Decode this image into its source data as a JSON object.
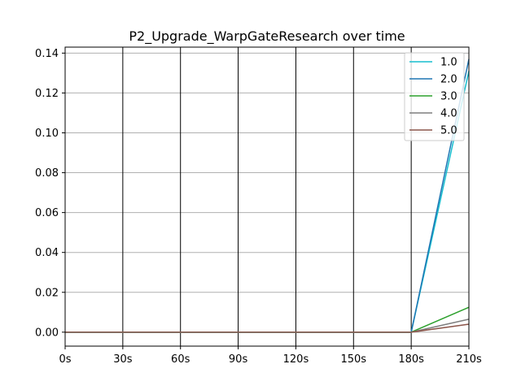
{
  "chart_data": {
    "type": "line",
    "title": "P2_Upgrade_WarpGateResearch over time",
    "xlabel": "",
    "ylabel": "",
    "categories": [
      "0s",
      "30s",
      "60s",
      "90s",
      "120s",
      "150s",
      "180s",
      "210s"
    ],
    "x": [
      0,
      30,
      60,
      90,
      120,
      150,
      180,
      210
    ],
    "xlim": [
      0,
      210
    ],
    "ylim": [
      -0.007,
      0.143
    ],
    "yticks": [
      0.0,
      0.02,
      0.04,
      0.06,
      0.08,
      0.1,
      0.12,
      0.14
    ],
    "ytick_labels": [
      "0.00",
      "0.02",
      "0.04",
      "0.06",
      "0.08",
      "0.10",
      "0.12",
      "0.14"
    ],
    "grid": {
      "horizontal": true,
      "vertical_color": "#000000",
      "horizontal_color": "#b0b0b0"
    },
    "legend_position": "top-right",
    "series": [
      {
        "name": "1.0",
        "color": "#17becf",
        "values": [
          0,
          0,
          0,
          0,
          0,
          0,
          0,
          0.131
        ]
      },
      {
        "name": "2.0",
        "color": "#1f77b4",
        "values": [
          0,
          0,
          0,
          0,
          0,
          0,
          0,
          0.137
        ]
      },
      {
        "name": "3.0",
        "color": "#2ca02c",
        "values": [
          0,
          0,
          0,
          0,
          0,
          0,
          0,
          0.0125
        ]
      },
      {
        "name": "4.0",
        "color": "#7f7f7f",
        "values": [
          0,
          0,
          0,
          0,
          0,
          0,
          0,
          0.0065
        ]
      },
      {
        "name": "5.0",
        "color": "#8c564b",
        "values": [
          0,
          0,
          0,
          0,
          0,
          0,
          0,
          0.004
        ]
      }
    ]
  }
}
